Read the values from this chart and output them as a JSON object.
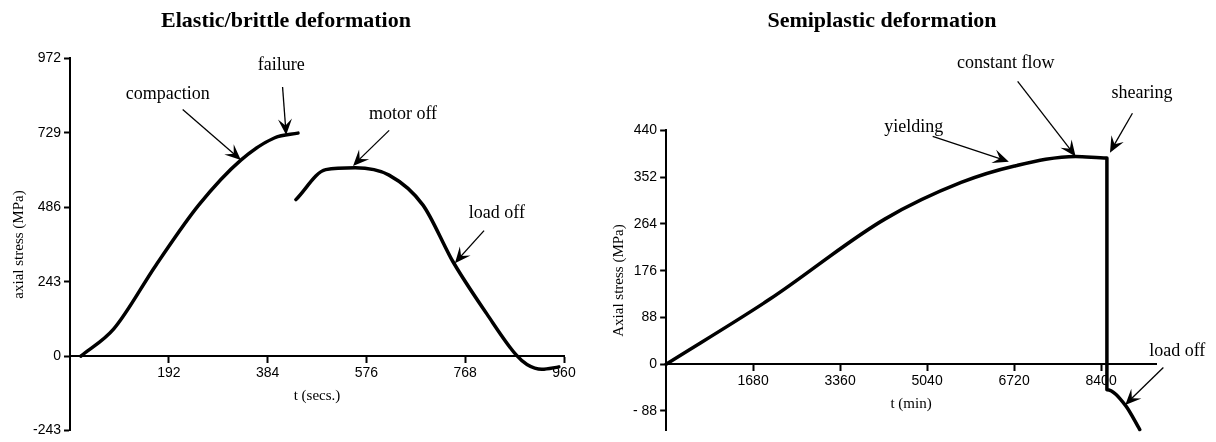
{
  "chart_data": [
    {
      "type": "line",
      "title": "Elastic/brittle deformation",
      "xlabel": "t (secs.)",
      "ylabel": "axial stress (MPa)",
      "xlim": [
        0,
        960
      ],
      "ylim": [
        -243,
        972
      ],
      "xticks": [
        192,
        384,
        576,
        768,
        960
      ],
      "yticks": [
        -243,
        0,
        243,
        486,
        729,
        972
      ],
      "marker": "none",
      "series": [
        {
          "color": "#000000",
          "x": [
            21,
            85,
            167,
            250,
            332,
            398,
            443
          ],
          "values": [
            0,
            89,
            297,
            493,
            640,
            713,
            728
          ]
        },
        {
          "color": "#000000",
          "x": [
            439,
            497,
            554,
            620,
            686,
            744,
            810,
            867,
            888,
            917,
            950
          ],
          "values": [
            511,
            609,
            615,
            591,
            493,
            309,
            138,
            4,
            -27,
            -43,
            -35
          ]
        }
      ],
      "annotations": [
        {
          "text": "compaction",
          "x": 332,
          "y": 640
        },
        {
          "text": "failure",
          "x": 420,
          "y": 722
        },
        {
          "text": "motor off",
          "x": 550,
          "y": 621
        },
        {
          "text": "load off",
          "x": 748,
          "y": 303
        }
      ]
    },
    {
      "type": "line",
      "title": "Semiplastic deformation",
      "xlabel": "t (min)",
      "ylabel": "Axial stress (MPa)",
      "xlim": [
        0,
        9460
      ],
      "ylim": [
        -125,
        440
      ],
      "xticks": [
        1680,
        3360,
        5040,
        6720,
        8400
      ],
      "yticks": [
        {
          "value": -88,
          "label": "- 88"
        },
        0,
        88,
        176,
        264,
        352,
        440
      ],
      "marker": "none",
      "series": [
        {
          "color": "#000000",
          "x": [
            0,
            2012,
            4223,
            5697,
            6729,
            7908,
            8512,
            8512,
            8866,
            9146
          ],
          "values": [
            0,
            123,
            273,
            342,
            373,
            391,
            388,
            -48,
            -77,
            -123
          ]
        }
      ],
      "annotations": [
        {
          "text": "yielding",
          "x": 6618,
          "y": 381
        },
        {
          "text": "constant flow",
          "x": 7908,
          "y": 391
        },
        {
          "text": "shearing",
          "x": 8571,
          "y": 398
        },
        {
          "text": "load off",
          "x": 8866,
          "y": -77
        }
      ]
    }
  ]
}
